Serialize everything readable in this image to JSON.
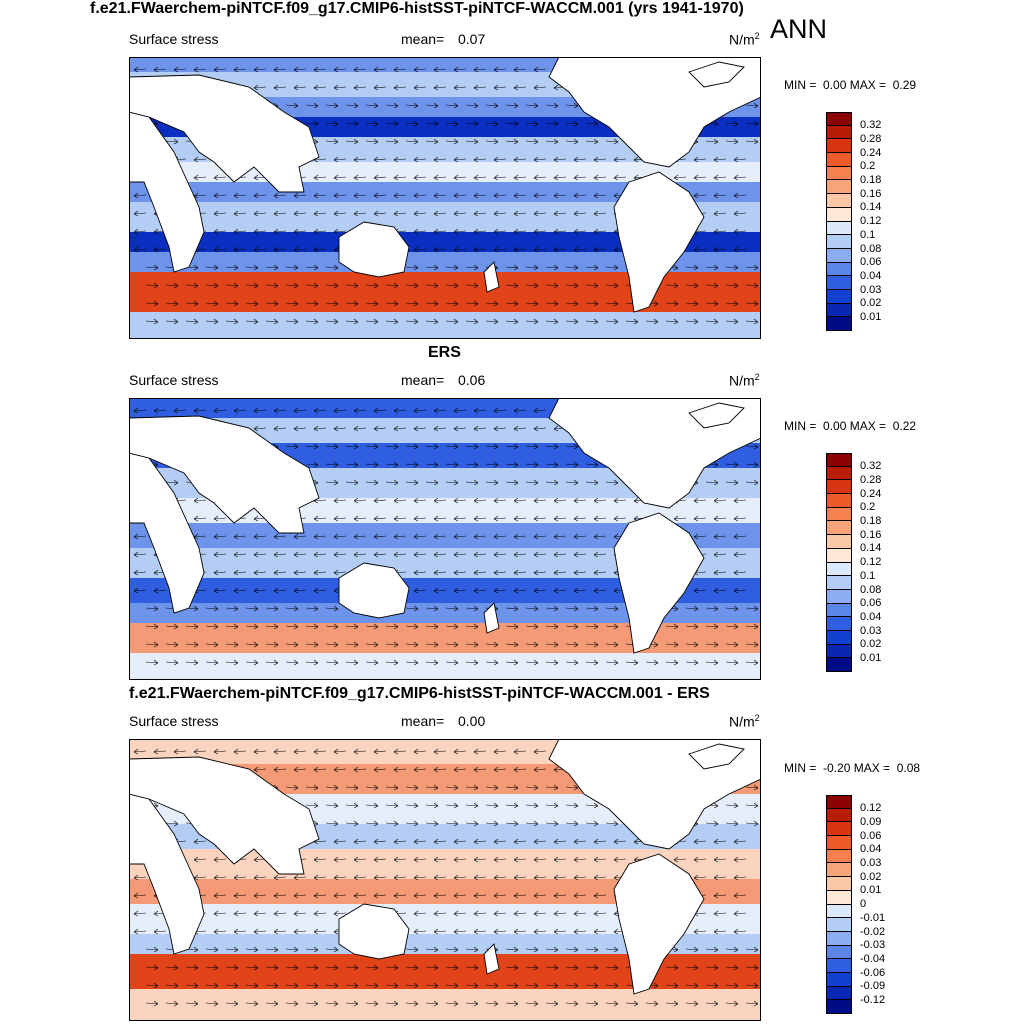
{
  "title": "f.e21.FWaerchem-piNTCF.f09_g17.CMIP6-histSST-piNTCF-WACCM.001 (yrs 1941-1970)",
  "season": "ANN",
  "panels": [
    {
      "panel_title": "",
      "variable": "Surface stress",
      "mean_label": "mean=",
      "mean_value": "0.07",
      "units": "N/m",
      "units_sup": "2",
      "min_label": "MIN =",
      "min_value": "0.00",
      "max_label": "MAX =",
      "max_value": "0.29",
      "colorbar": {
        "levels": [
          "0.32",
          "0.28",
          "0.24",
          "0.2",
          "0.18",
          "0.16",
          "0.14",
          "0.12",
          "0.1",
          "0.08",
          "0.06",
          "0.04",
          "0.03",
          "0.02",
          "0.01"
        ],
        "colors": [
          "#8b0000",
          "#b81c06",
          "#d9340f",
          "#ee5a2a",
          "#f6804f",
          "#f8a47a",
          "#fac8a6",
          "#fde7d6",
          "#dce9fa",
          "#b4cdf5",
          "#8cadef",
          "#5b86e8",
          "#2f5fe0",
          "#1240d2",
          "#0926b4",
          "#000c85"
        ]
      }
    },
    {
      "panel_title": "ERS",
      "variable": "Surface stress",
      "mean_label": "mean=",
      "mean_value": "0.06",
      "units": "N/m",
      "units_sup": "2",
      "min_label": "MIN =",
      "min_value": "0.00",
      "max_label": "MAX =",
      "max_value": "0.22",
      "colorbar": {
        "levels": [
          "0.32",
          "0.28",
          "0.24",
          "0.2",
          "0.18",
          "0.16",
          "0.14",
          "0.12",
          "0.1",
          "0.08",
          "0.06",
          "0.04",
          "0.03",
          "0.02",
          "0.01"
        ],
        "colors": [
          "#8b0000",
          "#b81c06",
          "#d9340f",
          "#ee5a2a",
          "#f6804f",
          "#f8a47a",
          "#fac8a6",
          "#fde7d6",
          "#dce9fa",
          "#b4cdf5",
          "#8cadef",
          "#5b86e8",
          "#2f5fe0",
          "#1240d2",
          "#0926b4",
          "#000c85"
        ]
      }
    },
    {
      "panel_title": "f.e21.FWaerchem-piNTCF.f09_g17.CMIP6-histSST-piNTCF-WACCM.001 - ERS",
      "variable": "Surface stress",
      "mean_label": "mean=",
      "mean_value": "0.00",
      "units": "N/m",
      "units_sup": "2",
      "min_label": "MIN =",
      "min_value": "-0.20",
      "max_label": "MAX =",
      "max_value": "0.08",
      "colorbar": {
        "levels": [
          "0.12",
          "0.09",
          "0.06",
          "0.04",
          "0.03",
          "0.02",
          "0.01",
          "0",
          "-0.01",
          "-0.02",
          "-0.03",
          "-0.04",
          "-0.06",
          "-0.09",
          "-0.12"
        ],
        "colors": [
          "#8b0000",
          "#b81c06",
          "#d9340f",
          "#ee5a2a",
          "#f6804f",
          "#f8a47a",
          "#fac8a6",
          "#fde7d6",
          "#dce9fa",
          "#b4cdf5",
          "#8cadef",
          "#5b86e8",
          "#2f5fe0",
          "#1240d2",
          "#0926b4",
          "#000c85"
        ]
      }
    }
  ],
  "map_colors": {
    "land": "#ffffff",
    "coast": "#000000",
    "strong_pos": "#e2441a",
    "mid_pos": "#f59a76",
    "weak_pos": "#fbd4c0",
    "neutral": "#e6eefc",
    "weak": "#b4cdf5",
    "mid": "#6d94ea",
    "strong": "#2f5fe0",
    "deep": "#0a2fc0",
    "arrow": "#000000"
  }
}
